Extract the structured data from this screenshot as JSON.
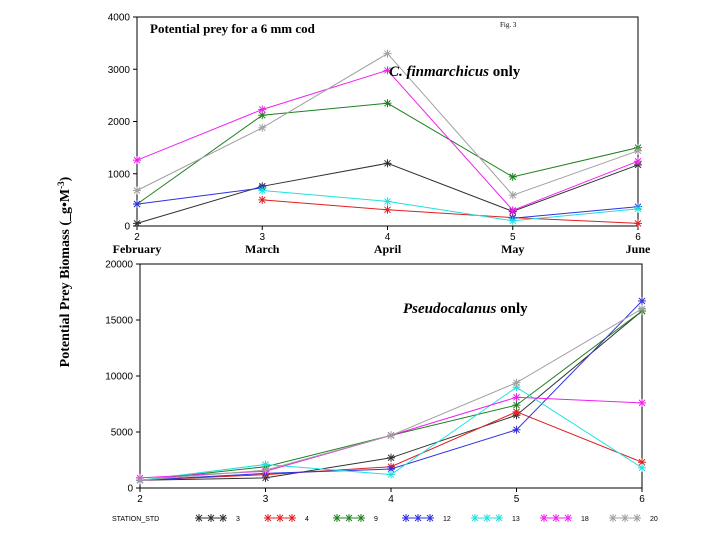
{
  "figure_note": "Fig. 3",
  "ylabel": "Potential Prey Biomass (_g•M",
  "ylabel_sup": "-3",
  "ylabel_close": ")",
  "legend_title": "STATION_STD",
  "colors": {
    "3": "#303030",
    "4": "#e02020",
    "9": "#208020",
    "12": "#3030e0",
    "13": "#20e0e0",
    "18": "#f020f0",
    "20": "#a0a0a0"
  },
  "chart_data": [
    {
      "type": "line",
      "title": "Potential prey for a 6 mm cod",
      "annotation_italic": "C. finmarchicus",
      "annotation_rest": " only",
      "x": [
        2,
        3,
        4,
        5,
        6
      ],
      "x_tick_labels": [
        "2",
        "3",
        "4",
        "5",
        "6"
      ],
      "x_month_labels": [
        "February",
        "March",
        "April",
        "May",
        "June"
      ],
      "xlim": [
        2,
        6
      ],
      "ylim": [
        0,
        4000
      ],
      "y_ticks": [
        0,
        1000,
        2000,
        3000,
        4000
      ],
      "grid": false,
      "series": [
        {
          "name": "3",
          "values": [
            50,
            760,
            1200,
            280,
            1170
          ]
        },
        {
          "name": "4",
          "values": [
            null,
            500,
            310,
            160,
            50
          ]
        },
        {
          "name": "9",
          "values": [
            420,
            2120,
            2350,
            940,
            1500
          ]
        },
        {
          "name": "12",
          "values": [
            420,
            730,
            null,
            150,
            370
          ]
        },
        {
          "name": "13",
          "values": [
            null,
            680,
            470,
            100,
            330
          ]
        },
        {
          "name": "18",
          "values": [
            1260,
            2230,
            2980,
            300,
            1240
          ]
        },
        {
          "name": "20",
          "values": [
            680,
            1880,
            3300,
            590,
            1440
          ]
        }
      ]
    },
    {
      "type": "line",
      "title": "",
      "annotation_italic": "Pseudocalanus",
      "annotation_rest": " only",
      "x": [
        2,
        3,
        4,
        5,
        6
      ],
      "x_tick_labels": [
        "2",
        "3",
        "4",
        "5",
        "6"
      ],
      "xlim": [
        2,
        6
      ],
      "ylim": [
        0,
        20000
      ],
      "y_ticks": [
        0,
        5000,
        10000,
        15000,
        20000
      ],
      "grid": false,
      "series": [
        {
          "name": "3",
          "values": [
            700,
            900,
            2700,
            6500,
            15800
          ]
        },
        {
          "name": "4",
          "values": [
            700,
            1200,
            1900,
            6800,
            2300
          ]
        },
        {
          "name": "9",
          "values": [
            700,
            1900,
            4700,
            7400,
            15800
          ]
        },
        {
          "name": "12",
          "values": [
            700,
            1300,
            1700,
            5200,
            16700
          ]
        },
        {
          "name": "13",
          "values": [
            700,
            2100,
            1200,
            9000,
            1800
          ]
        },
        {
          "name": "18",
          "values": [
            900,
            1500,
            4700,
            8100,
            7600
          ]
        },
        {
          "name": "20",
          "values": [
            700,
            1600,
            4700,
            9400,
            16000
          ]
        }
      ]
    }
  ]
}
